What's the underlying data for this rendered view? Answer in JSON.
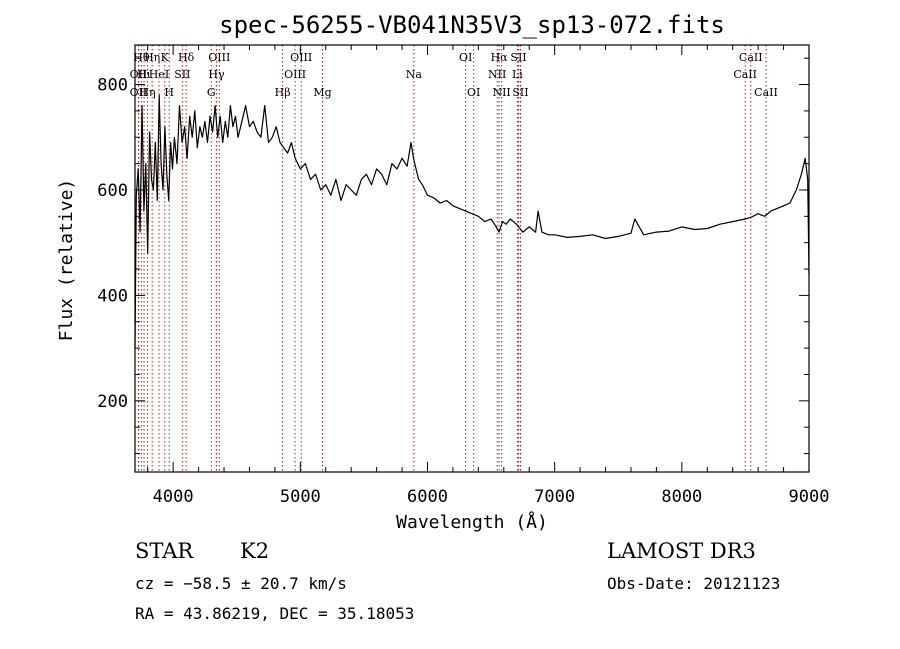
{
  "chart_data": {
    "type": "line",
    "title": "spec-56255-VB041N35V3_sp13-072.fits",
    "xlabel": "Wavelength (Å)",
    "ylabel": "Flux (relative)",
    "xlim": [
      3700,
      9000
    ],
    "ylim": [
      65,
      875
    ],
    "xticks": [
      4000,
      5000,
      6000,
      7000,
      8000,
      9000
    ],
    "yticks": [
      200,
      400,
      600,
      800
    ],
    "series": [
      {
        "name": "flux",
        "x": [
          3700,
          3710,
          3725,
          3740,
          3755,
          3770,
          3785,
          3800,
          3815,
          3830,
          3845,
          3860,
          3875,
          3890,
          3905,
          3920,
          3935,
          3950,
          3965,
          3980,
          3995,
          4010,
          4030,
          4050,
          4070,
          4090,
          4110,
          4130,
          4150,
          4170,
          4190,
          4210,
          4230,
          4250,
          4270,
          4290,
          4310,
          4330,
          4350,
          4370,
          4390,
          4410,
          4430,
          4450,
          4470,
          4490,
          4510,
          4530,
          4550,
          4570,
          4600,
          4630,
          4660,
          4690,
          4720,
          4750,
          4780,
          4810,
          4840,
          4870,
          4900,
          4930,
          4960,
          5000,
          5040,
          5080,
          5120,
          5160,
          5200,
          5240,
          5280,
          5320,
          5360,
          5400,
          5440,
          5480,
          5520,
          5560,
          5600,
          5640,
          5680,
          5720,
          5760,
          5800,
          5840,
          5870,
          5890,
          5910,
          5930,
          5960,
          6000,
          6050,
          6100,
          6150,
          6200,
          6250,
          6300,
          6350,
          6400,
          6450,
          6500,
          6540,
          6563,
          6590,
          6620,
          6650,
          6700,
          6750,
          6800,
          6850,
          6870,
          6900,
          6950,
          7000,
          7100,
          7200,
          7300,
          7400,
          7500,
          7600,
          7630,
          7700,
          7800,
          7900,
          8000,
          8100,
          8200,
          8300,
          8400,
          8500,
          8540,
          8560,
          8600,
          8650,
          8700,
          8750,
          8800,
          8850,
          8900,
          8940,
          8970,
          8990,
          9000
        ],
        "values": [
          300,
          590,
          640,
          520,
          760,
          560,
          650,
          480,
          710,
          620,
          600,
          690,
          580,
          780,
          650,
          600,
          720,
          630,
          580,
          690,
          640,
          700,
          650,
          760,
          690,
          720,
          660,
          740,
          700,
          750,
          680,
          720,
          700,
          730,
          690,
          740,
          710,
          760,
          700,
          740,
          690,
          730,
          700,
          760,
          720,
          740,
          700,
          720,
          740,
          760,
          720,
          730,
          710,
          700,
          760,
          690,
          700,
          720,
          690,
          680,
          670,
          690,
          660,
          640,
          650,
          620,
          630,
          600,
          610,
          590,
          620,
          580,
          610,
          600,
          590,
          620,
          630,
          610,
          640,
          630,
          610,
          650,
          640,
          660,
          645,
          690,
          660,
          640,
          620,
          610,
          590,
          585,
          575,
          580,
          570,
          565,
          560,
          555,
          550,
          540,
          545,
          530,
          520,
          540,
          535,
          545,
          535,
          520,
          530,
          520,
          560,
          520,
          515,
          515,
          510,
          512,
          515,
          508,
          512,
          518,
          545,
          515,
          520,
          522,
          530,
          525,
          527,
          535,
          540,
          545,
          548,
          550,
          555,
          550,
          560,
          565,
          570,
          575,
          600,
          630,
          660,
          620,
          440
        ]
      }
    ],
    "lines": [
      {
        "wavelength": 3727,
        "label": "OII",
        "row": 2
      },
      {
        "wavelength": 3727,
        "label": "OII",
        "row": 3
      },
      {
        "wavelength": 3750,
        "label": "Hθ",
        "row": 1
      },
      {
        "wavelength": 3771,
        "label": "Hι",
        "row": 2
      },
      {
        "wavelength": 3798,
        "label": "Hη",
        "row": 3
      },
      {
        "wavelength": 3835,
        "label": "Hη",
        "row": 1
      },
      {
        "wavelength": 3889,
        "label": "HeI",
        "row": 2
      },
      {
        "wavelength": 3934,
        "label": "K",
        "row": 1
      },
      {
        "wavelength": 3969,
        "label": "H",
        "row": 3
      },
      {
        "wavelength": 4072,
        "label": "SII",
        "row": 2
      },
      {
        "wavelength": 4102,
        "label": "Hδ",
        "row": 1
      },
      {
        "wavelength": 4300,
        "label": "G",
        "row": 3
      },
      {
        "wavelength": 4341,
        "label": "Hγ",
        "row": 2
      },
      {
        "wavelength": 4363,
        "label": "OIII",
        "row": 1
      },
      {
        "wavelength": 4861,
        "label": "Hβ",
        "row": 3
      },
      {
        "wavelength": 4959,
        "label": "OIII",
        "row": 2
      },
      {
        "wavelength": 5007,
        "label": "OIII",
        "row": 1
      },
      {
        "wavelength": 5175,
        "label": "Mg",
        "row": 3
      },
      {
        "wavelength": 5893,
        "label": "Na",
        "row": 2
      },
      {
        "wavelength": 6300,
        "label": "OI",
        "row": 1
      },
      {
        "wavelength": 6363,
        "label": "OI",
        "row": 3
      },
      {
        "wavelength": 6548,
        "label": "NII",
        "row": 2
      },
      {
        "wavelength": 6563,
        "label": "Hα",
        "row": 1
      },
      {
        "wavelength": 6583,
        "label": "NII",
        "row": 3
      },
      {
        "wavelength": 6707,
        "label": "Li",
        "row": 2
      },
      {
        "wavelength": 6716,
        "label": "SII",
        "row": 1
      },
      {
        "wavelength": 6731,
        "label": "SII",
        "row": 3
      },
      {
        "wavelength": 8498,
        "label": "CaII",
        "row": 2
      },
      {
        "wavelength": 8542,
        "label": "CaII",
        "row": 1
      },
      {
        "wavelength": 8662,
        "label": "CaII",
        "row": 3
      }
    ],
    "line_color": "#c00000",
    "info": {
      "class": "STAR",
      "subclass": "K2",
      "cz": "cz = −58.5 ± 20.7 km/s",
      "radec": "RA =  43.86219, DEC =  35.18053",
      "survey": "LAMOST DR3",
      "obs_date": "Obs-Date: 20121123"
    }
  }
}
